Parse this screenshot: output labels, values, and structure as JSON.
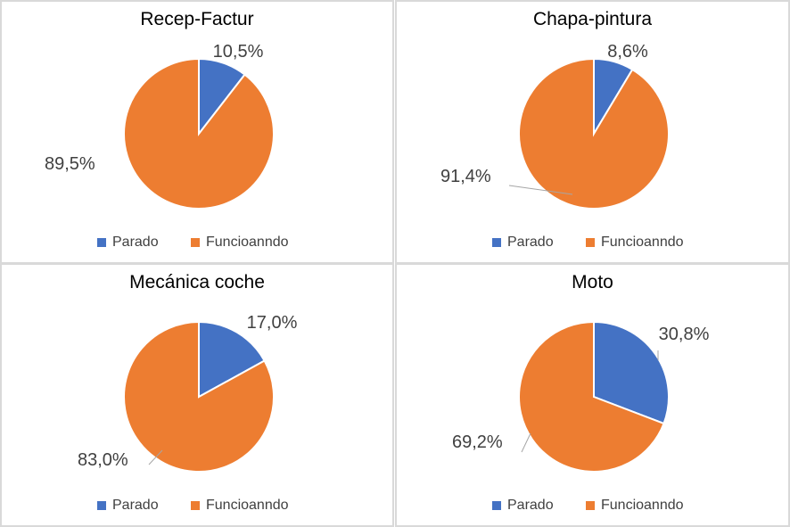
{
  "colors": {
    "parado": "#4472C4",
    "funcionando": "#ED7D31",
    "text": "#404040",
    "leader": "#A6A6A6"
  },
  "legend": [
    "Parado",
    "Funcioanndo"
  ],
  "chart_data": [
    {
      "type": "pie",
      "title": "Recep-Factur",
      "categories": [
        "Parado",
        "Funcioanndo"
      ],
      "values": [
        10.5,
        89.5
      ],
      "labels": [
        "10,5%",
        "89,5%"
      ],
      "legend_position": "bottom"
    },
    {
      "type": "pie",
      "title": "Chapa-pintura",
      "categories": [
        "Parado",
        "Funcioanndo"
      ],
      "values": [
        8.6,
        91.4
      ],
      "labels": [
        "8,6%",
        "91,4%"
      ],
      "legend_position": "bottom"
    },
    {
      "type": "pie",
      "title": "Mecánica coche",
      "categories": [
        "Parado",
        "Funcioanndo"
      ],
      "values": [
        17.0,
        83.0
      ],
      "labels": [
        "17,0%",
        "83,0%"
      ],
      "legend_position": "bottom"
    },
    {
      "type": "pie",
      "title": "Moto",
      "categories": [
        "Parado",
        "Funcioanndo"
      ],
      "values": [
        30.8,
        69.2
      ],
      "labels": [
        "30,8%",
        "69,2%"
      ],
      "legend_position": "bottom"
    }
  ]
}
